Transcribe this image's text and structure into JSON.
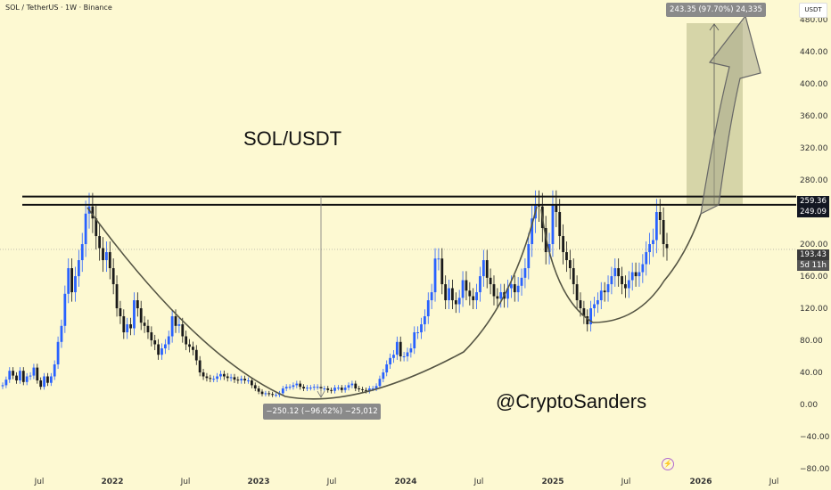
{
  "header": {
    "symbol_line": "SOL / TetherUS · 1W · Binance",
    "currency": "USDT"
  },
  "annotations": {
    "pair_title": "SOL/USDT",
    "author_handle": "@CryptoSanders",
    "lightning_icon": "lightning-icon"
  },
  "chart_data": {
    "type": "candlestick",
    "xlabel": "",
    "ylabel": "",
    "x_ticks": [
      "Jul",
      "2022",
      "Jul",
      "2023",
      "Jul",
      "2024",
      "Jul",
      "2025",
      "Jul",
      "2026",
      "Jul"
    ],
    "y_ticks": [
      "480.00",
      "440.00",
      "400.00",
      "360.00",
      "320.00",
      "280.00",
      "240.00",
      "200.00",
      "160.00",
      "120.00",
      "80.00",
      "40.00",
      "0.00",
      "−40.00",
      "−80.00"
    ],
    "ylim": [
      -90,
      515
    ],
    "colors": {
      "up": "#2962ff",
      "down": "#1a1a1a",
      "zone": "#c8c89a",
      "curve": "#555544"
    },
    "candles_weekly_close": [
      24,
      31,
      42,
      36,
      30,
      42,
      28,
      35,
      36,
      46,
      30,
      22,
      35,
      27,
      35,
      50,
      78,
      98,
      138,
      170,
      140,
      160,
      180,
      200,
      238,
      247,
      232,
      210,
      195,
      180,
      190,
      170,
      150,
      120,
      110,
      90,
      100,
      95,
      130,
      120,
      102,
      98,
      90,
      80,
      75,
      62,
      70,
      75,
      85,
      110,
      98,
      100,
      85,
      75,
      72,
      68,
      55,
      40,
      35,
      33,
      32,
      32,
      35,
      38,
      35,
      33,
      34,
      31,
      30,
      32,
      30,
      30,
      24,
      20,
      16,
      13,
      14,
      13,
      12,
      12,
      14,
      20,
      22,
      22,
      24,
      26,
      22,
      20,
      21,
      21,
      22,
      22,
      20,
      20,
      18,
      17,
      21,
      21,
      18,
      21,
      24,
      26,
      20,
      19,
      18,
      17,
      20,
      20,
      23,
      32,
      40,
      50,
      58,
      62,
      78,
      60,
      60,
      65,
      70,
      90,
      90,
      100,
      110,
      130,
      140,
      182,
      182,
      150,
      130,
      145,
      130,
      125,
      133,
      155,
      142,
      135,
      130,
      140,
      160,
      180,
      158,
      150,
      135,
      132,
      140,
      132,
      145,
      150,
      140,
      148,
      158,
      170,
      200,
      232,
      250,
      247,
      220,
      190,
      200,
      250,
      240,
      210,
      190,
      180,
      170,
      150,
      130,
      120,
      110,
      100,
      120,
      125,
      130,
      142,
      140,
      150,
      160,
      170,
      160,
      150,
      145,
      155,
      165,
      160,
      165,
      175,
      190,
      200,
      205,
      240,
      230,
      200,
      195
    ],
    "levels": [
      {
        "label": "259.36",
        "value": 259.36,
        "type": "resistance"
      },
      {
        "label": "249.09",
        "value": 249.09,
        "type": "resistance"
      }
    ],
    "current_price": {
      "label": "193.43",
      "value": 193.43,
      "countdown": "5d 11h"
    },
    "drawdown_measure": {
      "label": "−250.12 (−96.62%) −25,012",
      "change": -250.12,
      "percent": -96.62,
      "ticks": -25012
    },
    "target_measure": {
      "label": "243.35 (97.70%) 24,335",
      "change": 243.35,
      "percent": 97.7,
      "ticks": 24335,
      "target": 492
    },
    "patterns": [
      "cup (2022–2024)",
      "handle (2025)"
    ]
  }
}
